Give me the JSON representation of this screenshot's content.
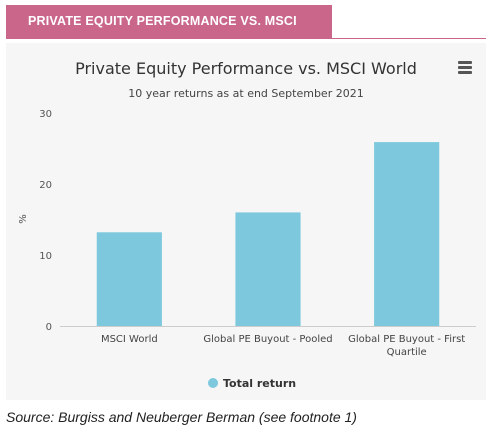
{
  "banner": {
    "title": "PRIVATE EQUITY PERFORMANCE VS. MSCI WORLD"
  },
  "menu": {
    "icon": "hamburger-menu-icon"
  },
  "colors": {
    "banner": "#c9668a",
    "bar": "#7ec8dd",
    "panel": "#f6f6f6"
  },
  "source": {
    "text": "Source: Burgiss and Neuberger Berman (see footnote 1)"
  },
  "chart_data": {
    "type": "bar",
    "title": "Private Equity Performance vs. MSCI World",
    "subtitle": "10 year returns as at end September 2021",
    "xlabel": "",
    "ylabel": "%",
    "categories": [
      [
        "MSCI World"
      ],
      [
        "Global PE Buyout - Pooled"
      ],
      [
        "Global PE Buyout - First",
        "Quartile"
      ]
    ],
    "series": [
      {
        "name": "Total return",
        "values": [
          13.2,
          16.0,
          25.9
        ]
      }
    ],
    "ylim": [
      0,
      30
    ],
    "yticks": [
      0,
      10,
      20,
      30
    ],
    "grid": false,
    "legend": "bottom"
  }
}
